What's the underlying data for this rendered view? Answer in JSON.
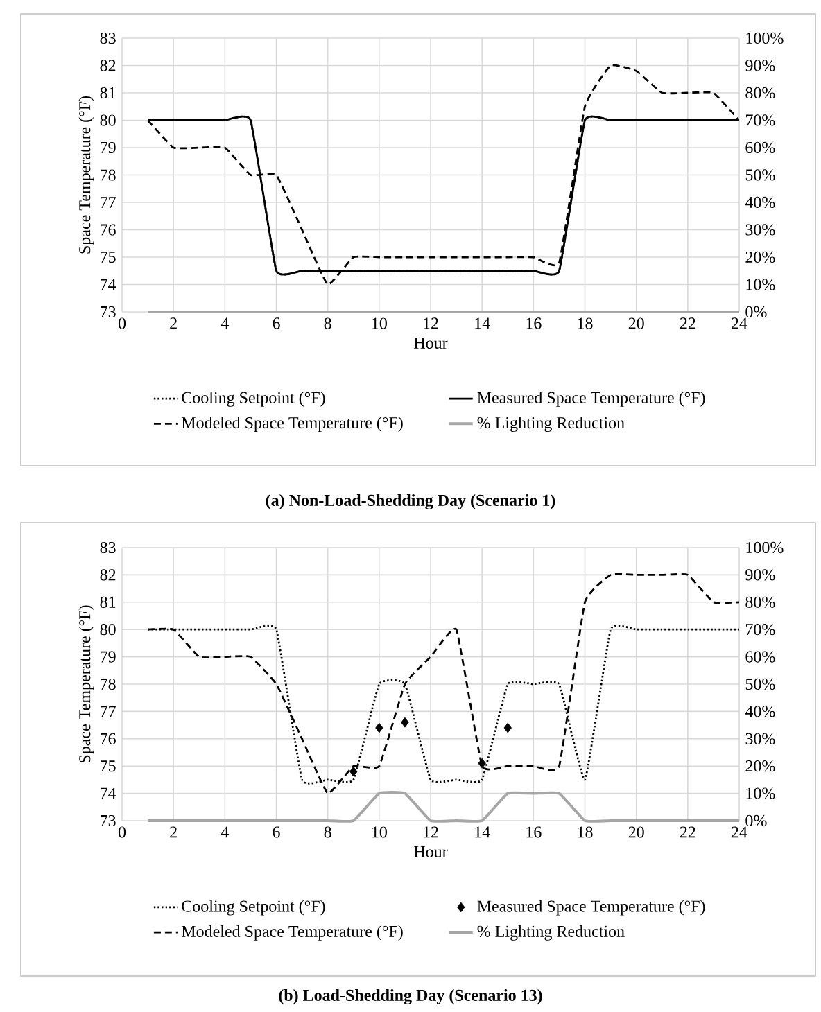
{
  "chart_data": [
    {
      "type": "line",
      "title": "(a) Non-Load-Shedding Day (Scenario 1)",
      "xlabel": "Hour",
      "ylabel": "Space Temperature (°F)",
      "x": [
        1,
        2,
        3,
        4,
        5,
        6,
        7,
        8,
        9,
        10,
        11,
        12,
        13,
        14,
        15,
        16,
        17,
        18,
        19,
        20,
        21,
        22,
        23,
        24
      ],
      "xlim": [
        0,
        24
      ],
      "xticks": [
        0,
        2,
        4,
        6,
        8,
        10,
        12,
        14,
        16,
        18,
        20,
        22,
        24
      ],
      "ylim": [
        73,
        83
      ],
      "yticks": [
        73,
        74,
        75,
        76,
        77,
        78,
        79,
        80,
        81,
        82,
        83
      ],
      "y2lim": [
        0,
        100
      ],
      "y2ticks": [
        {
          "value": 0,
          "label": "0%"
        },
        {
          "value": 10,
          "label": "10%"
        },
        {
          "value": 20,
          "label": "20%"
        },
        {
          "value": 30,
          "label": "30%"
        },
        {
          "value": 40,
          "label": "40%"
        },
        {
          "value": 50,
          "label": "50%"
        },
        {
          "value": 60,
          "label": "60%"
        },
        {
          "value": 70,
          "label": "70%"
        },
        {
          "value": 80,
          "label": "80%"
        },
        {
          "value": 90,
          "label": "90%"
        },
        {
          "value": 100,
          "label": "100%"
        }
      ],
      "grid": true,
      "legend": "bottom",
      "series": [
        {
          "name": "Cooling Setpoint (°F)",
          "line_style": "dotted",
          "marker": "none",
          "color": "#000000",
          "values": [
            80,
            80,
            80,
            80,
            80,
            74.5,
            74.5,
            74.5,
            74.5,
            74.5,
            74.5,
            74.5,
            74.5,
            74.5,
            74.5,
            74.5,
            74.5,
            80,
            80,
            80,
            80,
            80,
            80,
            80
          ]
        },
        {
          "name": "Measured Space Temperature (°F)",
          "line_style": "solid",
          "marker": "none",
          "color": "#000000",
          "values": [
            80,
            80,
            80,
            80,
            80,
            74.5,
            74.5,
            74.5,
            74.5,
            74.5,
            74.5,
            74.5,
            74.5,
            74.5,
            74.5,
            74.5,
            74.5,
            80,
            80,
            80,
            80,
            80,
            80,
            80
          ]
        },
        {
          "name": "Modeled Space Temperature (°F)",
          "line_style": "dashed",
          "marker": "none",
          "color": "#000000",
          "values": [
            80,
            79,
            79,
            79,
            78,
            78,
            76,
            74,
            75,
            75,
            75,
            75,
            75,
            75,
            75,
            75,
            74.8,
            80.5,
            82,
            81.8,
            81,
            81,
            81,
            80
          ]
        },
        {
          "name": "% Lighting Reduction",
          "line_style": "solid",
          "marker": "none",
          "axis": "y2",
          "color": "#a6a6a6",
          "values": [
            0,
            0,
            0,
            0,
            0,
            0,
            0,
            0,
            0,
            0,
            0,
            0,
            0,
            0,
            0,
            0,
            0,
            0,
            0,
            0,
            0,
            0,
            0,
            0
          ]
        }
      ]
    },
    {
      "type": "line",
      "title": "(b) Load-Shedding Day (Scenario 13)",
      "xlabel": "Hour",
      "ylabel": "Space Temperature (°F)",
      "x": [
        1,
        2,
        3,
        4,
        5,
        6,
        7,
        8,
        9,
        10,
        11,
        12,
        13,
        14,
        15,
        16,
        17,
        18,
        19,
        20,
        21,
        22,
        23,
        24
      ],
      "xlim": [
        0,
        24
      ],
      "xticks": [
        0,
        2,
        4,
        6,
        8,
        10,
        12,
        14,
        16,
        18,
        20,
        22,
        24
      ],
      "ylim": [
        73,
        83
      ],
      "yticks": [
        73,
        74,
        75,
        76,
        77,
        78,
        79,
        80,
        81,
        82,
        83
      ],
      "y2lim": [
        0,
        100
      ],
      "y2ticks": [
        {
          "value": 0,
          "label": "0%"
        },
        {
          "value": 10,
          "label": "10%"
        },
        {
          "value": 20,
          "label": "20%"
        },
        {
          "value": 30,
          "label": "30%"
        },
        {
          "value": 40,
          "label": "40%"
        },
        {
          "value": 50,
          "label": "50%"
        },
        {
          "value": 60,
          "label": "60%"
        },
        {
          "value": 70,
          "label": "70%"
        },
        {
          "value": 80,
          "label": "80%"
        },
        {
          "value": 90,
          "label": "90%"
        },
        {
          "value": 100,
          "label": "100%"
        }
      ],
      "grid": true,
      "legend": "bottom",
      "series": [
        {
          "name": "Cooling Setpoint (°F)",
          "line_style": "dotted",
          "marker": "none",
          "color": "#000000",
          "values": [
            80,
            80,
            80,
            80,
            80,
            80,
            74.5,
            74.5,
            74.5,
            78,
            78,
            74.5,
            74.5,
            74.5,
            78,
            78,
            78,
            74.5,
            80,
            80,
            80,
            80,
            80,
            80
          ]
        },
        {
          "name": "Measured Space Temperature (°F)",
          "type": "scatter",
          "marker": "diamond",
          "color": "#000000",
          "values": [
            null,
            null,
            null,
            null,
            null,
            null,
            null,
            null,
            74.8,
            76.4,
            76.6,
            null,
            null,
            75.1,
            76.4,
            null,
            null,
            null,
            null,
            null,
            null,
            null,
            null,
            null
          ]
        },
        {
          "name": "Modeled Space Temperature (°F)",
          "line_style": "dashed",
          "marker": "none",
          "color": "#000000",
          "values": [
            80,
            80,
            79,
            79,
            79,
            78,
            76,
            74,
            75,
            75,
            78,
            79,
            80,
            75,
            75,
            75,
            75,
            81,
            82,
            82,
            82,
            82,
            81,
            81
          ]
        },
        {
          "name": "% Lighting Reduction",
          "line_style": "solid",
          "marker": "none",
          "axis": "y2",
          "color": "#a6a6a6",
          "values": [
            0,
            0,
            0,
            0,
            0,
            0,
            0,
            0,
            0,
            10,
            10,
            0,
            0,
            0,
            10,
            10,
            10,
            0,
            0,
            0,
            0,
            0,
            0,
            0
          ]
        }
      ]
    }
  ]
}
